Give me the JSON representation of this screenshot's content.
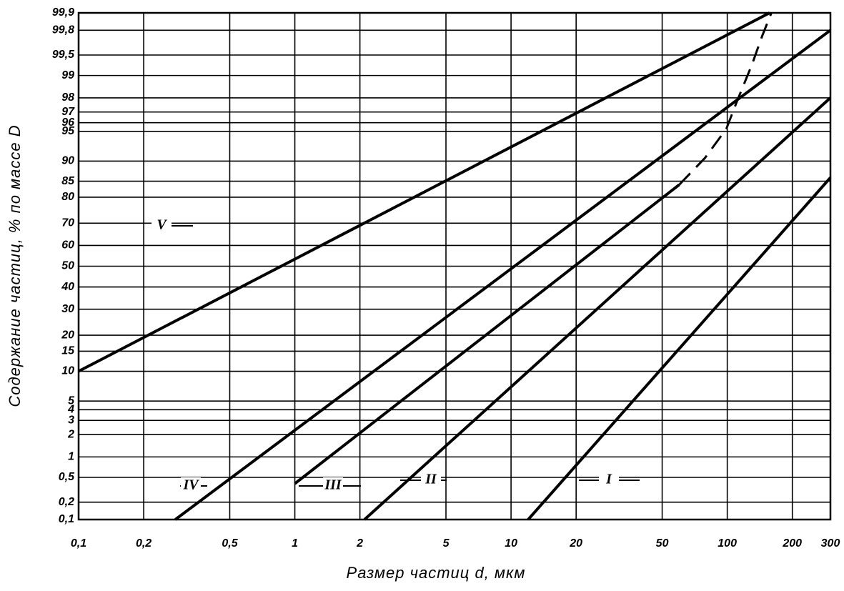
{
  "chart_data": {
    "type": "line",
    "xlabel": "Размер частиц d, мкм",
    "ylabel": "Содержание частиц, % по массе D",
    "xscale": "log",
    "yscale": "probability",
    "xlim": [
      0.1,
      300
    ],
    "ylim": [
      0.1,
      99.9
    ],
    "xticks": [
      {
        "value": 0.1,
        "label": "0,1"
      },
      {
        "value": 0.2,
        "label": "0,2"
      },
      {
        "value": 0.5,
        "label": "0,5"
      },
      1,
      2,
      5,
      10,
      20,
      50,
      100,
      200,
      300
    ],
    "yticks": [
      {
        "value": 0.1,
        "label": "0,1"
      },
      {
        "value": 0.2,
        "label": "0,2"
      },
      {
        "value": 0.5,
        "label": "0,5"
      },
      1,
      2,
      3,
      4,
      5,
      10,
      15,
      20,
      30,
      40,
      50,
      60,
      70,
      80,
      85,
      90,
      95,
      96,
      97,
      98,
      99,
      {
        "value": 99.5,
        "label": "99,5"
      },
      {
        "value": 99.8,
        "label": "99,8"
      },
      {
        "value": 99.9,
        "label": "99,9"
      }
    ],
    "grid": true,
    "color": "#000000",
    "series": [
      {
        "name": "I",
        "x": [
          12,
          300
        ],
        "values": [
          0.1,
          86
        ]
      },
      {
        "name": "II",
        "x": [
          2.1,
          300
        ],
        "values": [
          0.1,
          98
        ]
      },
      {
        "name": "III",
        "x": [
          1,
          60
        ],
        "values": [
          0.4,
          84
        ]
      },
      {
        "name": "IV",
        "x": [
          0.28,
          300
        ],
        "values": [
          0.1,
          99.8
        ]
      },
      {
        "name": "V",
        "x": [
          0.1,
          157
        ],
        "values": [
          10,
          99.9
        ]
      },
      {
        "line_style": "dashed",
        "x": [
          60,
          79,
          99,
          111,
          130,
          145,
          160
        ],
        "values": [
          84,
          90.7,
          95.3,
          97.8,
          99.3,
          99.75,
          99.9
        ]
      }
    ]
  }
}
